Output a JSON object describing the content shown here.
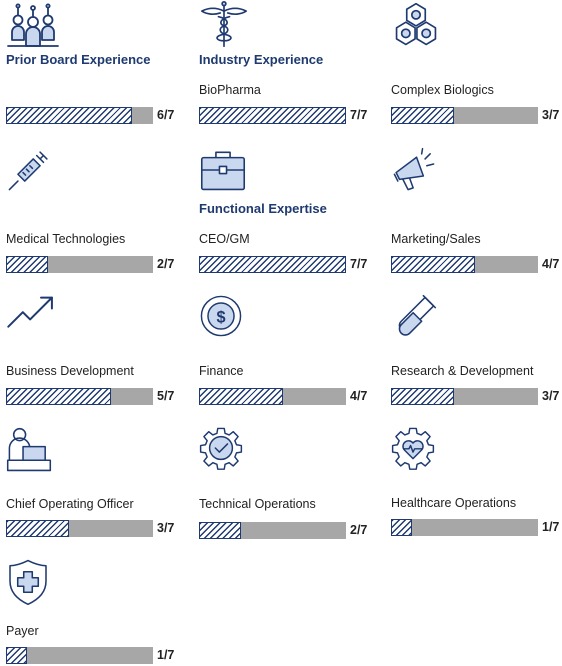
{
  "colors": {
    "navy": "#1f3a70",
    "light_blue": "#c9d8ef",
    "bar_gray": "#a7a7a7"
  },
  "section_headings": {
    "prior_board": "Prior Board Experience",
    "industry": "Industry Experience",
    "functional": "Functional Expertise"
  },
  "skills": [
    {
      "label": "",
      "score": "6/7",
      "fraction": 0.857,
      "icon": "board-members-icon"
    },
    {
      "label": "BioPharma",
      "score": "7/7",
      "fraction": 1.0,
      "icon": "caduceus-icon"
    },
    {
      "label": "Complex Biologics",
      "score": "3/7",
      "fraction": 0.4286,
      "icon": "molecule-icon"
    },
    {
      "label": "Medical Technologies",
      "score": "2/7",
      "fraction": 0.2857,
      "icon": "syringe-icon"
    },
    {
      "label": "CEO/GM",
      "score": "7/7",
      "fraction": 1.0,
      "icon": "briefcase-icon"
    },
    {
      "label": "Marketing/Sales",
      "score": "4/7",
      "fraction": 0.5714,
      "icon": "megaphone-icon"
    },
    {
      "label": "Business Development",
      "score": "5/7",
      "fraction": 0.7143,
      "icon": "trend-up-icon"
    },
    {
      "label": "Finance",
      "score": "4/7",
      "fraction": 0.5714,
      "icon": "dollar-coin-icon"
    },
    {
      "label": "Research & Development",
      "score": "3/7",
      "fraction": 0.4286,
      "icon": "test-tube-icon"
    },
    {
      "label": "Chief Operating Officer",
      "score": "3/7",
      "fraction": 0.4286,
      "icon": "person-desk-icon"
    },
    {
      "label": "Technical Operations",
      "score": "2/7",
      "fraction": 0.2857,
      "icon": "gear-check-icon"
    },
    {
      "label": "Healthcare Operations",
      "score": "1/7",
      "fraction": 0.1429,
      "icon": "gear-heart-icon"
    },
    {
      "label": "Payer",
      "score": "1/7",
      "fraction": 0.1429,
      "icon": "shield-cross-icon"
    }
  ]
}
